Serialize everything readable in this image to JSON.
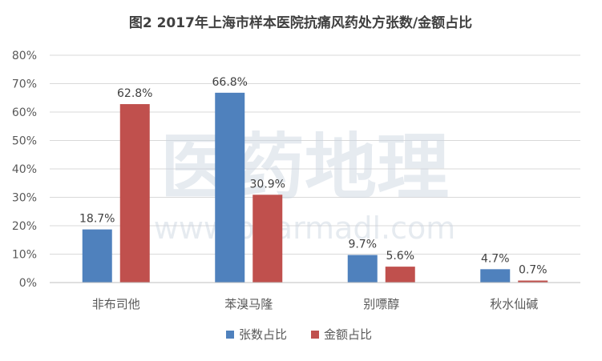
{
  "chart_data": {
    "type": "bar",
    "title": "图2 2017年上海市样本医院抗痛风药处方张数/金额占比",
    "categories": [
      "非布司他",
      "苯溴马隆",
      "别嘌醇",
      "秋水仙碱"
    ],
    "series": [
      {
        "name": "张数占比",
        "values": [
          18.7,
          66.8,
          9.7,
          4.7
        ],
        "labels": [
          "18.7%",
          "66.8%",
          "9.7%",
          "4.7%"
        ],
        "color": "#4f81bd"
      },
      {
        "name": "金额占比",
        "values": [
          62.8,
          30.9,
          5.6,
          0.7
        ],
        "labels": [
          "62.8%",
          "30.9%",
          "5.6%",
          "0.7%"
        ],
        "color": "#c0504d"
      }
    ],
    "ylim": [
      0,
      80
    ],
    "yticks": [
      0,
      10,
      20,
      30,
      40,
      50,
      60,
      70,
      80
    ],
    "ytick_labels": [
      "0%",
      "10%",
      "20%",
      "30%",
      "40%",
      "50%",
      "60%",
      "70%",
      "80%"
    ],
    "grid": true,
    "legend_position": "bottom"
  },
  "watermark": {
    "brand": "医药地理",
    "url": "www.pharmadl.com"
  },
  "colors": {
    "gridline": "#d9d9d9",
    "axis_text": "#595959",
    "title_text": "#404040",
    "watermark": "#c8d3e0"
  }
}
